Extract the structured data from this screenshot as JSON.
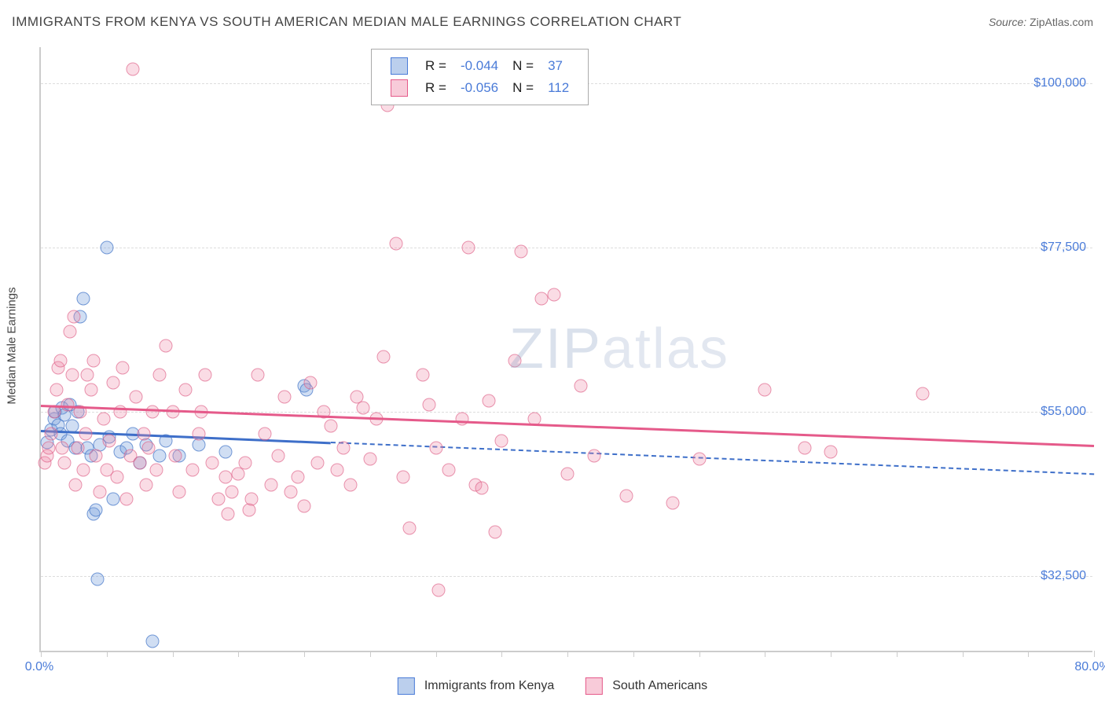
{
  "title": "IMMIGRANTS FROM KENYA VS SOUTH AMERICAN MEDIAN MALE EARNINGS CORRELATION CHART",
  "source_label": "Source:",
  "source_value": "ZipAtlas.com",
  "watermark": {
    "bold": "ZIP",
    "thin": "atlas"
  },
  "chart": {
    "type": "scatter",
    "x_axis": {
      "min": 0,
      "max": 80,
      "title": ""
    },
    "y_axis": {
      "min": 22000,
      "max": 105000,
      "title": "Median Male Earnings"
    },
    "y_ticks": [
      {
        "v": 32500,
        "label": "$32,500"
      },
      {
        "v": 55000,
        "label": "$55,000"
      },
      {
        "v": 77500,
        "label": "$77,500"
      },
      {
        "v": 100000,
        "label": "$100,000"
      }
    ],
    "x_tick_positions": [
      0,
      5,
      10,
      15,
      20,
      25,
      30,
      35,
      40,
      45,
      50,
      55,
      60,
      65,
      70,
      75,
      80
    ],
    "x_tick_labels": [
      {
        "v": 0,
        "label": "0.0%"
      },
      {
        "v": 80,
        "label": "80.0%"
      }
    ],
    "grid_color": "#dddddd",
    "border_color": "#cccccc",
    "series": [
      {
        "name": "Immigrants from Kenya",
        "fill": "rgba(120,160,220,0.35)",
        "stroke": "rgba(70,120,200,0.7)",
        "trend_color": "#3e6fc9",
        "trend": {
          "y_at_x0": 52500,
          "y_at_x80": 46500,
          "solid_until_x": 22
        },
        "stats": {
          "R": "-0.044",
          "N": "37"
        },
        "points": [
          [
            0.5,
            50800
          ],
          [
            0.8,
            52500
          ],
          [
            1.0,
            54000
          ],
          [
            1.1,
            55000
          ],
          [
            1.3,
            53200
          ],
          [
            1.5,
            52000
          ],
          [
            1.6,
            55500
          ],
          [
            1.8,
            54500
          ],
          [
            2.0,
            51000
          ],
          [
            2.2,
            56000
          ],
          [
            2.4,
            53000
          ],
          [
            2.6,
            50000
          ],
          [
            2.8,
            55000
          ],
          [
            3.0,
            68000
          ],
          [
            3.2,
            70500
          ],
          [
            3.5,
            50000
          ],
          [
            3.8,
            49000
          ],
          [
            4.0,
            41000
          ],
          [
            4.2,
            41500
          ],
          [
            4.5,
            50500
          ],
          [
            5.0,
            77500
          ],
          [
            5.2,
            51500
          ],
          [
            5.5,
            43000
          ],
          [
            6.0,
            49500
          ],
          [
            6.5,
            50000
          ],
          [
            7.0,
            52000
          ],
          [
            7.5,
            48000
          ],
          [
            8.0,
            50500
          ],
          [
            8.5,
            23500
          ],
          [
            9.0,
            49000
          ],
          [
            9.5,
            51000
          ],
          [
            10.5,
            49000
          ],
          [
            12.0,
            50500
          ],
          [
            14.0,
            49500
          ],
          [
            20.0,
            58500
          ],
          [
            20.2,
            58000
          ],
          [
            4.3,
            32000
          ]
        ]
      },
      {
        "name": "South Americans",
        "fill": "rgba(240,140,170,0.30)",
        "stroke": "rgba(220,90,130,0.6)",
        "trend_color": "#e55a8a",
        "trend": {
          "y_at_x0": 56000,
          "y_at_x80": 50500
        },
        "stats": {
          "R": "-0.056",
          "N": "112"
        },
        "points": [
          [
            0.3,
            48000
          ],
          [
            0.5,
            49000
          ],
          [
            0.6,
            50000
          ],
          [
            0.8,
            52000
          ],
          [
            1.0,
            55000
          ],
          [
            1.2,
            58000
          ],
          [
            1.3,
            61000
          ],
          [
            1.5,
            62000
          ],
          [
            1.6,
            50000
          ],
          [
            1.8,
            48000
          ],
          [
            2.0,
            56000
          ],
          [
            2.2,
            66000
          ],
          [
            2.4,
            60000
          ],
          [
            2.5,
            68000
          ],
          [
            2.6,
            45000
          ],
          [
            2.8,
            50000
          ],
          [
            3.0,
            55000
          ],
          [
            3.2,
            47000
          ],
          [
            3.4,
            52000
          ],
          [
            3.5,
            60000
          ],
          [
            3.8,
            58000
          ],
          [
            4.0,
            62000
          ],
          [
            4.2,
            49000
          ],
          [
            4.5,
            44000
          ],
          [
            4.8,
            54000
          ],
          [
            5.0,
            47000
          ],
          [
            5.2,
            51000
          ],
          [
            5.5,
            59000
          ],
          [
            5.8,
            46000
          ],
          [
            6.0,
            55000
          ],
          [
            6.2,
            61000
          ],
          [
            6.5,
            43000
          ],
          [
            6.8,
            49000
          ],
          [
            7.0,
            102000
          ],
          [
            7.2,
            57000
          ],
          [
            7.5,
            48000
          ],
          [
            7.8,
            52000
          ],
          [
            8.0,
            45000
          ],
          [
            8.2,
            50000
          ],
          [
            8.5,
            55000
          ],
          [
            8.8,
            47000
          ],
          [
            9.0,
            60000
          ],
          [
            9.5,
            64000
          ],
          [
            10.0,
            55000
          ],
          [
            10.2,
            49000
          ],
          [
            10.5,
            44000
          ],
          [
            11.0,
            58000
          ],
          [
            11.5,
            47000
          ],
          [
            12.0,
            52000
          ],
          [
            12.2,
            55000
          ],
          [
            12.5,
            60000
          ],
          [
            13.0,
            48000
          ],
          [
            13.5,
            43000
          ],
          [
            14.0,
            46000
          ],
          [
            14.2,
            41000
          ],
          [
            14.5,
            44000
          ],
          [
            15.0,
            46500
          ],
          [
            15.5,
            48000
          ],
          [
            15.8,
            41500
          ],
          [
            16.0,
            43000
          ],
          [
            16.5,
            60000
          ],
          [
            17.0,
            52000
          ],
          [
            17.5,
            45000
          ],
          [
            18.0,
            49000
          ],
          [
            18.5,
            57000
          ],
          [
            19.0,
            44000
          ],
          [
            19.5,
            46000
          ],
          [
            20.0,
            42000
          ],
          [
            20.5,
            59000
          ],
          [
            21.0,
            48000
          ],
          [
            21.5,
            55000
          ],
          [
            22.0,
            53000
          ],
          [
            22.5,
            47000
          ],
          [
            23.0,
            50000
          ],
          [
            23.5,
            45000
          ],
          [
            24.0,
            57000
          ],
          [
            24.5,
            55500
          ],
          [
            25.0,
            48500
          ],
          [
            25.5,
            54000
          ],
          [
            26.0,
            62500
          ],
          [
            26.3,
            97000
          ],
          [
            26.5,
            102500
          ],
          [
            27.0,
            78000
          ],
          [
            27.5,
            46000
          ],
          [
            28.0,
            39000
          ],
          [
            29.0,
            60000
          ],
          [
            29.5,
            56000
          ],
          [
            30.0,
            50000
          ],
          [
            30.2,
            30500
          ],
          [
            31.0,
            47000
          ],
          [
            32.0,
            54000
          ],
          [
            32.5,
            77500
          ],
          [
            33.0,
            45000
          ],
          [
            33.5,
            44500
          ],
          [
            34.0,
            56500
          ],
          [
            34.5,
            38500
          ],
          [
            35.0,
            51000
          ],
          [
            36.0,
            62000
          ],
          [
            36.5,
            77000
          ],
          [
            37.5,
            54000
          ],
          [
            38.0,
            70500
          ],
          [
            39.0,
            71000
          ],
          [
            40.0,
            46500
          ],
          [
            41.0,
            58500
          ],
          [
            42.0,
            49000
          ],
          [
            44.5,
            43500
          ],
          [
            48.0,
            42500
          ],
          [
            50.0,
            48500
          ],
          [
            55.0,
            58000
          ],
          [
            58.0,
            50000
          ],
          [
            60.0,
            49500
          ],
          [
            67.0,
            57500
          ]
        ]
      }
    ]
  },
  "stats_box_labels": {
    "R": "R =",
    "N": "N ="
  },
  "legend_labels": [
    "Immigrants from Kenya",
    "South Americans"
  ]
}
